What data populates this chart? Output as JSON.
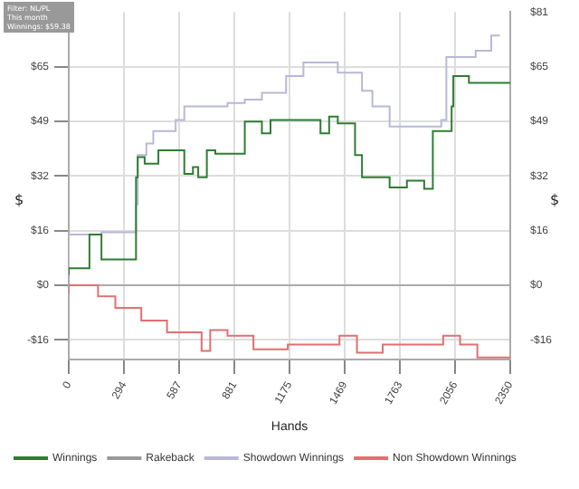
{
  "chart_data": {
    "type": "step",
    "xlabel": "Hands",
    "ylabel": "$",
    "y2label": "$",
    "annotations": [
      "Filter: NL/PL",
      "This month",
      "Winnings: $59.38"
    ],
    "xlim": [
      0,
      2350
    ],
    "xticks": [
      0,
      {
        "value": 294,
        "label": "294"
      },
      587,
      881,
      1175,
      1469,
      1763,
      2056,
      2350
    ],
    "ylim": [
      -22,
      81
    ],
    "yticks": [
      {
        "value": -16.2,
        "label": "-$16"
      },
      {
        "value": 0,
        "label": "$0"
      },
      {
        "value": 16.2,
        "label": "$16"
      },
      {
        "value": 32.4,
        "label": "$32"
      },
      {
        "value": 48.6,
        "label": "$49"
      },
      {
        "value": 64.8,
        "label": "$65"
      }
    ],
    "y2lim": [
      -22,
      81
    ],
    "y2ticks": [
      {
        "value": -16.2,
        "label": "-$16"
      },
      {
        "value": 0,
        "label": "$0"
      },
      {
        "value": 16.2,
        "label": "$16"
      },
      {
        "value": 32.4,
        "label": "$32"
      },
      {
        "value": 48.6,
        "label": "$49"
      },
      {
        "value": 64.8,
        "label": "$65"
      },
      {
        "value": 81,
        "label": "$81"
      }
    ],
    "grid": true,
    "legend": "bottom",
    "ref_lines": [
      {
        "axis": "y",
        "value": 0,
        "color": "#aaaaaa"
      }
    ],
    "series": [
      {
        "name": "Winnings",
        "color": "#2e7d32",
        "x": [
          0,
          110,
          174,
          358,
          367,
          404,
          477,
          551,
          615,
          661,
          689,
          735,
          780,
          937,
          1028,
          1074,
          1175,
          1340,
          1386,
          1432,
          1524,
          1561,
          1708,
          1800,
          1892,
          1938,
          1983,
          2038,
          2047,
          2130,
          2350
        ],
        "values": [
          3,
          5,
          15,
          7.6,
          32,
          38,
          36,
          40,
          40,
          33,
          35,
          32,
          40,
          39,
          48.5,
          45,
          49,
          49,
          45,
          50,
          48,
          38.6,
          32,
          29,
          31,
          28.6,
          45.7,
          45.7,
          53,
          62,
          60
        ]
      },
      {
        "name": "Rakeback",
        "color": "#999999"
      },
      {
        "name": "Showdown Winnings",
        "color": "#b8b8d8",
        "x": [
          0,
          174,
          358,
          367,
          413,
          450,
          569,
          615,
          753,
          845,
          937,
          1028,
          1157,
          1249,
          1432,
          1561,
          1616,
          1708,
          1846,
          1983,
          2010,
          2166,
          2249,
          2295
        ],
        "values": [
          5,
          15,
          15.7,
          24,
          38.6,
          42,
          45.7,
          49,
          53,
          53,
          54,
          55,
          57,
          62,
          66,
          63,
          57.6,
          53,
          47,
          47,
          49,
          67.6,
          69.5,
          74
        ]
      },
      {
        "name": "Non Showdown Winnings",
        "color": "#e07070",
        "x": [
          0,
          156,
          248,
          386,
          523,
          707,
          753,
          845,
          983,
          1166,
          1441,
          1534,
          1671,
          1993,
          2083,
          2175,
          2350
        ],
        "values": [
          -2.4,
          0,
          -3.3,
          -6.7,
          -10.5,
          -14,
          -19.5,
          -13.3,
          -15,
          -19,
          -17.6,
          -15,
          -20,
          -17.6,
          -15,
          -17.6,
          -21.4
        ]
      }
    ]
  }
}
